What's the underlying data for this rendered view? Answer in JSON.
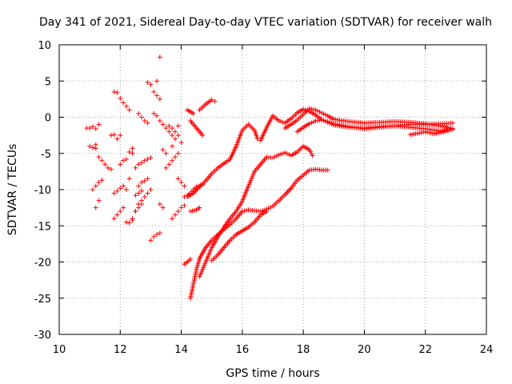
{
  "chart_data": {
    "type": "scatter",
    "title": "Day 341 of 2021, Sidereal Day-to-day VTEC variation (SDTVAR) for receiver walh",
    "xlabel": "GPS time / hours",
    "ylabel": "SDTVAR / TECUs",
    "xlim": [
      10,
      24
    ],
    "ylim": [
      -30,
      10
    ],
    "xticks": [
      "10",
      "12",
      "14",
      "16",
      "18",
      "20",
      "22",
      "24"
    ],
    "yticks": [
      "10",
      "5",
      "0",
      "-5",
      "-10",
      "-15",
      "-20",
      "-25",
      "-30"
    ],
    "grid": true,
    "marker": "plus",
    "color": "#ff0000",
    "series": [
      {
        "name": "track-1",
        "x": [
          14.2,
          14.4,
          14.6,
          14.8,
          15.0,
          15.2,
          15.4,
          15.6,
          15.8,
          16.0,
          16.2,
          16.4,
          16.5,
          16.6,
          16.8,
          17.0,
          17.2,
          17.4,
          17.6,
          17.8,
          18.0,
          18.2,
          18.4,
          18.6,
          18.8,
          19.0,
          19.5,
          20.0,
          20.5,
          21.0,
          21.5,
          22.0,
          22.5,
          22.9
        ],
        "y": [
          -11.0,
          -10.5,
          -9.6,
          -8.8,
          -7.8,
          -7.0,
          -6.4,
          -5.8,
          -4.0,
          -1.8,
          -1.0,
          -1.8,
          -3.0,
          -3.2,
          -1.4,
          0.2,
          -0.5,
          -0.8,
          -0.2,
          0.6,
          1.1,
          0.8,
          0.3,
          -0.3,
          -0.7,
          -1.1,
          -1.4,
          -1.5,
          -1.3,
          -1.2,
          -1.0,
          -1.0,
          -0.9,
          -0.8
        ]
      },
      {
        "name": "track-2",
        "x": [
          17.4,
          17.6,
          17.8,
          18.0,
          18.2,
          18.4,
          18.6,
          18.8,
          19.0,
          19.5,
          20.0,
          20.5,
          21.0,
          21.5,
          22.0,
          22.5,
          22.9
        ],
        "y": [
          -1.5,
          -1.0,
          -0.4,
          0.4,
          1.2,
          1.0,
          0.6,
          0.2,
          -0.3,
          -0.6,
          -0.8,
          -0.7,
          -0.6,
          -0.7,
          -0.9,
          -1.2,
          -1.6
        ]
      },
      {
        "name": "track-3",
        "x": [
          17.8,
          18.0,
          18.2,
          18.4,
          18.6,
          18.8,
          19.0,
          19.5,
          20.0,
          20.5,
          21.0,
          21.5,
          22.0,
          22.5,
          22.9
        ],
        "y": [
          -2.0,
          -1.4,
          -0.9,
          -0.5,
          -0.4,
          -0.6,
          -0.9,
          -1.3,
          -1.6,
          -1.4,
          -1.2,
          -1.4,
          -1.6,
          -1.9,
          -1.7
        ]
      },
      {
        "name": "track-4",
        "x": [
          21.5,
          21.8,
          22.0,
          22.3,
          22.6,
          22.9
        ],
        "y": [
          -2.4,
          -2.2,
          -2.0,
          -2.3,
          -2.0,
          -1.6
        ]
      },
      {
        "name": "track-5",
        "x": [
          14.6,
          14.8,
          15.0,
          15.2,
          15.4,
          15.6,
          15.8,
          16.0,
          16.2,
          16.4,
          16.6,
          16.8,
          17.0,
          17.2,
          17.4,
          17.6,
          17.8,
          18.0,
          18.2,
          18.3
        ],
        "y": [
          -22.0,
          -20.0,
          -18.0,
          -16.5,
          -15.2,
          -14.0,
          -13.0,
          -11.6,
          -9.5,
          -7.5,
          -6.5,
          -5.5,
          -5.6,
          -5.2,
          -4.9,
          -5.3,
          -4.8,
          -4.0,
          -4.5,
          -5.3
        ]
      },
      {
        "name": "track-6",
        "x": [
          14.3,
          14.4,
          14.5,
          14.6,
          14.8,
          15.0,
          15.2,
          15.4,
          15.6,
          15.8,
          16.0,
          16.2,
          16.4,
          16.6,
          16.8,
          17.0,
          17.2,
          17.4,
          17.6,
          17.8,
          18.0,
          18.2,
          18.4,
          18.6,
          18.8
        ],
        "y": [
          -25.0,
          -23.0,
          -21.0,
          -19.5,
          -18.0,
          -17.0,
          -16.2,
          -15.5,
          -14.8,
          -14.0,
          -13.0,
          -12.8,
          -12.9,
          -13.0,
          -12.7,
          -12.3,
          -11.5,
          -10.7,
          -9.8,
          -8.7,
          -8.0,
          -7.3,
          -7.2,
          -7.3,
          -7.3
        ]
      },
      {
        "name": "track-7",
        "x": [
          15.0,
          15.2,
          15.4,
          15.6,
          15.8,
          16.0,
          16.2,
          16.4,
          16.6,
          16.8
        ],
        "y": [
          -19.8,
          -19.0,
          -18.0,
          -17.0,
          -16.2,
          -15.7,
          -15.2,
          -14.5,
          -13.5,
          -13.0
        ]
      },
      {
        "name": "track-8",
        "x": [
          14.1,
          14.2,
          14.3
        ],
        "y": [
          -20.3,
          -20.0,
          -19.6
        ]
      },
      {
        "name": "track-9",
        "x": [
          14.1,
          14.2,
          14.3,
          14.4,
          14.5,
          14.7
        ],
        "y": [
          -11.0,
          -10.8,
          -10.5,
          -10.0,
          -9.6,
          -9.3
        ]
      },
      {
        "name": "track-10",
        "x": [
          14.6,
          14.8,
          15.0,
          15.1
        ],
        "y": [
          1.0,
          1.8,
          2.4,
          2.2
        ]
      },
      {
        "name": "track-11",
        "x": [
          14.3,
          14.5,
          14.7
        ],
        "y": [
          -0.5,
          -1.5,
          -2.5
        ]
      },
      {
        "name": "track-12",
        "x": [
          14.3,
          14.5,
          14.6
        ],
        "y": [
          -13.0,
          -12.8,
          -12.5
        ]
      },
      {
        "name": "track-13",
        "x": [
          14.2,
          14.4
        ],
        "y": [
          1.0,
          0.5
        ]
      },
      {
        "name": "scatter-early",
        "x": [
          10.9,
          11.0,
          11.1,
          11.2,
          11.3,
          11.0,
          11.1,
          11.2,
          11.2,
          11.3,
          11.4,
          11.1,
          11.2,
          11.3,
          11.4,
          11.5,
          11.6,
          11.7,
          11.2,
          11.3,
          11.7,
          11.8,
          11.9,
          12.0,
          11.8,
          11.9,
          12.0,
          12.1,
          11.8,
          11.9,
          12.0,
          12.1,
          11.8,
          11.9,
          12.0,
          12.1,
          12.2,
          12.3,
          12.0,
          12.1,
          12.2,
          12.3,
          12.4,
          12.2,
          12.3,
          12.4,
          12.5,
          12.6,
          12.7,
          12.6,
          12.7,
          12.8,
          12.9,
          12.6,
          12.7,
          12.8,
          12.9,
          13.0,
          12.5,
          12.6,
          12.7,
          12.8,
          12.9,
          13.0,
          12.6,
          12.7,
          12.8,
          12.9,
          12.5,
          12.6,
          12.7,
          12.9,
          13.0,
          13.1,
          13.2,
          13.3,
          13.0,
          13.1,
          13.2,
          13.3,
          13.1,
          13.2,
          13.3,
          13.4,
          13.5,
          13.6,
          13.7,
          13.8,
          13.9,
          13.5,
          13.6,
          13.7,
          13.8,
          13.9,
          13.7,
          13.8,
          13.9,
          14.0,
          14.1,
          13.6,
          13.7,
          13.8,
          13.9,
          14.0,
          13.9,
          14.0,
          14.1,
          13.4,
          13.5,
          13.7,
          13.3,
          13.2,
          12.3,
          12.5,
          12.4,
          13.4,
          13.3,
          12.4,
          12.2
        ],
        "y": [
          -1.5,
          -1.5,
          -1.3,
          -1.6,
          -1.0,
          -4.0,
          -4.2,
          -4.3,
          -3.8,
          -5.5,
          -6.0,
          -10.0,
          -9.5,
          -9.0,
          -8.7,
          -6.5,
          -7.0,
          -7.2,
          -12.5,
          -11.5,
          -2.5,
          -2.4,
          -3.0,
          -2.5,
          -10.5,
          -10.2,
          -9.8,
          -9.5,
          -14.0,
          -13.5,
          -13.0,
          -12.5,
          3.5,
          3.4,
          2.6,
          2.0,
          1.5,
          1.0,
          -6.5,
          -6.0,
          -5.8,
          -4.8,
          -5.0,
          -14.5,
          -14.6,
          -14.0,
          -13.0,
          -12.0,
          -11.5,
          0.5,
          0.0,
          -0.5,
          -0.8,
          -6.5,
          -6.3,
          -6.0,
          -5.8,
          -5.6,
          -13.0,
          -12.5,
          -12.0,
          -11.0,
          -10.5,
          -10.0,
          -9.5,
          -9.0,
          -8.8,
          -8.5,
          -10.8,
          -10.5,
          -10.2,
          4.8,
          4.5,
          3.5,
          3.0,
          2.5,
          -17.0,
          -16.5,
          -16.2,
          -16.0,
          0.5,
          0.2,
          -0.5,
          -1.0,
          -1.5,
          -2.0,
          -2.5,
          -3.0,
          -1.2,
          -7.0,
          -6.5,
          -6.0,
          -5.5,
          -5.0,
          -14.0,
          -13.5,
          -13.0,
          -12.5,
          -12.2,
          -1.2,
          -1.5,
          -2.0,
          -2.5,
          -3.5,
          -8.5,
          -9.0,
          -9.5,
          -4.5,
          -5.0,
          -4.0,
          8.3,
          5.0,
          -8.5,
          -7.0,
          -4.3,
          -12.5,
          -12.0,
          -14.2,
          -10.0
        ]
      }
    ]
  }
}
